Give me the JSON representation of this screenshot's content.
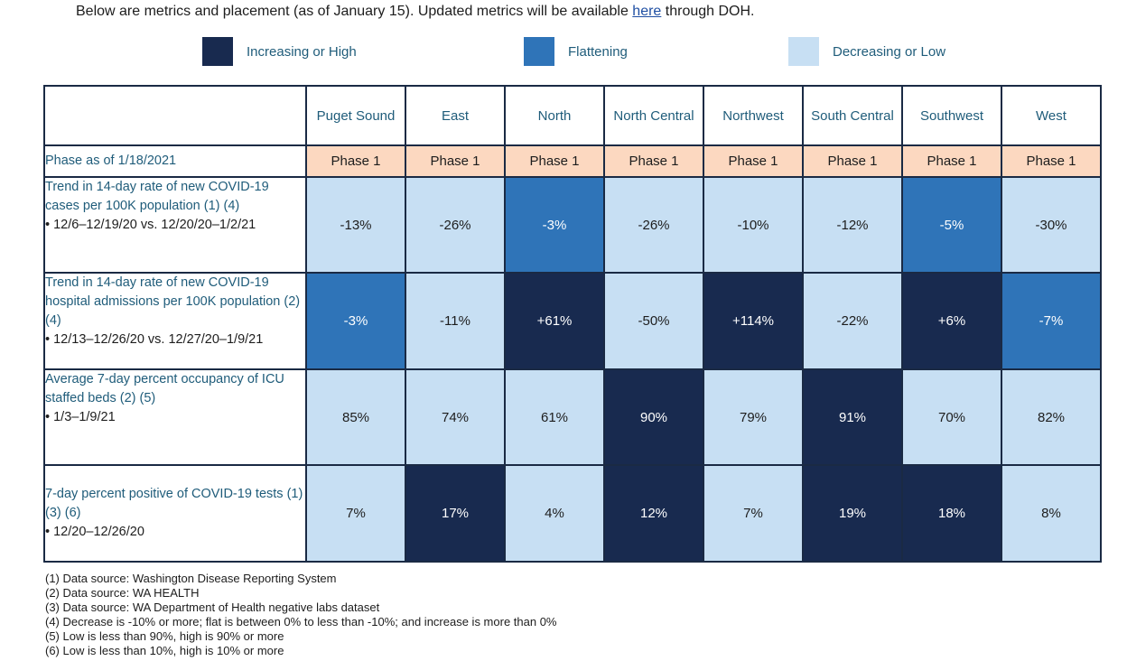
{
  "intro": {
    "before": "Below are metrics and placement (as of January 15). Updated metrics will be available ",
    "link": "here",
    "after": " through DOH."
  },
  "legend": [
    {
      "label": "Increasing or High",
      "color": "#182a4f"
    },
    {
      "label": "Flattening",
      "color": "#2f74b8"
    },
    {
      "label": "Decreasing or Low",
      "color": "#c7dff3"
    }
  ],
  "colors": {
    "high": "#182a4f",
    "flat": "#2f74b8",
    "low": "#c7dff3",
    "phase": "#fcd8c0"
  },
  "table": {
    "regions": [
      "Puget Sound",
      "East",
      "North",
      "North Central",
      "Northwest",
      "South Central",
      "Southwest",
      "West"
    ],
    "phase_row": {
      "label": "Phase as of 1/18/2021",
      "values": [
        "Phase 1",
        "Phase 1",
        "Phase 1",
        "Phase 1",
        "Phase 1",
        "Phase 1",
        "Phase 1",
        "Phase 1"
      ]
    },
    "rows": [
      {
        "label": "Trend in 14-day rate of new COVID-19 cases per 100K population (1) (4)",
        "sub": "12/6–12/19/20 vs. 12/20/20–1/2/21",
        "cells": [
          {
            "value": "-13%",
            "level": "low"
          },
          {
            "value": "-26%",
            "level": "low"
          },
          {
            "value": "-3%",
            "level": "flat"
          },
          {
            "value": "-26%",
            "level": "low"
          },
          {
            "value": "-10%",
            "level": "low"
          },
          {
            "value": "-12%",
            "level": "low"
          },
          {
            "value": "-5%",
            "level": "flat"
          },
          {
            "value": "-30%",
            "level": "low"
          }
        ]
      },
      {
        "label": "Trend in 14-day rate of new COVID-19 hospital admissions per 100K population (2) (4)",
        "sub": "12/13–12/26/20 vs. 12/27/20–1/9/21",
        "cells": [
          {
            "value": "-3%",
            "level": "flat"
          },
          {
            "value": "-11%",
            "level": "low"
          },
          {
            "value": "+61%",
            "level": "high"
          },
          {
            "value": "-50%",
            "level": "low"
          },
          {
            "value": "+114%",
            "level": "high"
          },
          {
            "value": "-22%",
            "level": "low"
          },
          {
            "value": "+6%",
            "level": "high"
          },
          {
            "value": "-7%",
            "level": "flat"
          }
        ]
      },
      {
        "label": "Average 7-day percent occupancy of ICU staffed beds (2) (5)",
        "sub": "1/3–1/9/21",
        "cells": [
          {
            "value": "85%",
            "level": "low"
          },
          {
            "value": "74%",
            "level": "low"
          },
          {
            "value": "61%",
            "level": "low"
          },
          {
            "value": "90%",
            "level": "high"
          },
          {
            "value": "79%",
            "level": "low"
          },
          {
            "value": "91%",
            "level": "high"
          },
          {
            "value": "70%",
            "level": "low"
          },
          {
            "value": "82%",
            "level": "low"
          }
        ]
      },
      {
        "label": "7-day percent positive of COVID-19 tests (1) (3) (6)",
        "sub": "12/20–12/26/20",
        "cells": [
          {
            "value": "7%",
            "level": "low"
          },
          {
            "value": "17%",
            "level": "high"
          },
          {
            "value": "4%",
            "level": "low"
          },
          {
            "value": "12%",
            "level": "high"
          },
          {
            "value": "7%",
            "level": "low"
          },
          {
            "value": "19%",
            "level": "high"
          },
          {
            "value": "18%",
            "level": "high"
          },
          {
            "value": "8%",
            "level": "low"
          }
        ]
      }
    ]
  },
  "notes": [
    "(1) Data source: Washington Disease Reporting System",
    "(2) Data source: WA HEALTH",
    "(3) Data source: WA Department of Health negative labs dataset",
    "(4) Decrease is -10% or more; flat is between 0% to less than -10%; and increase is more than 0%",
    "(5) Low is less than 90%, high is 90% or more",
    "(6) Low is less than 10%, high is 10% or more"
  ]
}
